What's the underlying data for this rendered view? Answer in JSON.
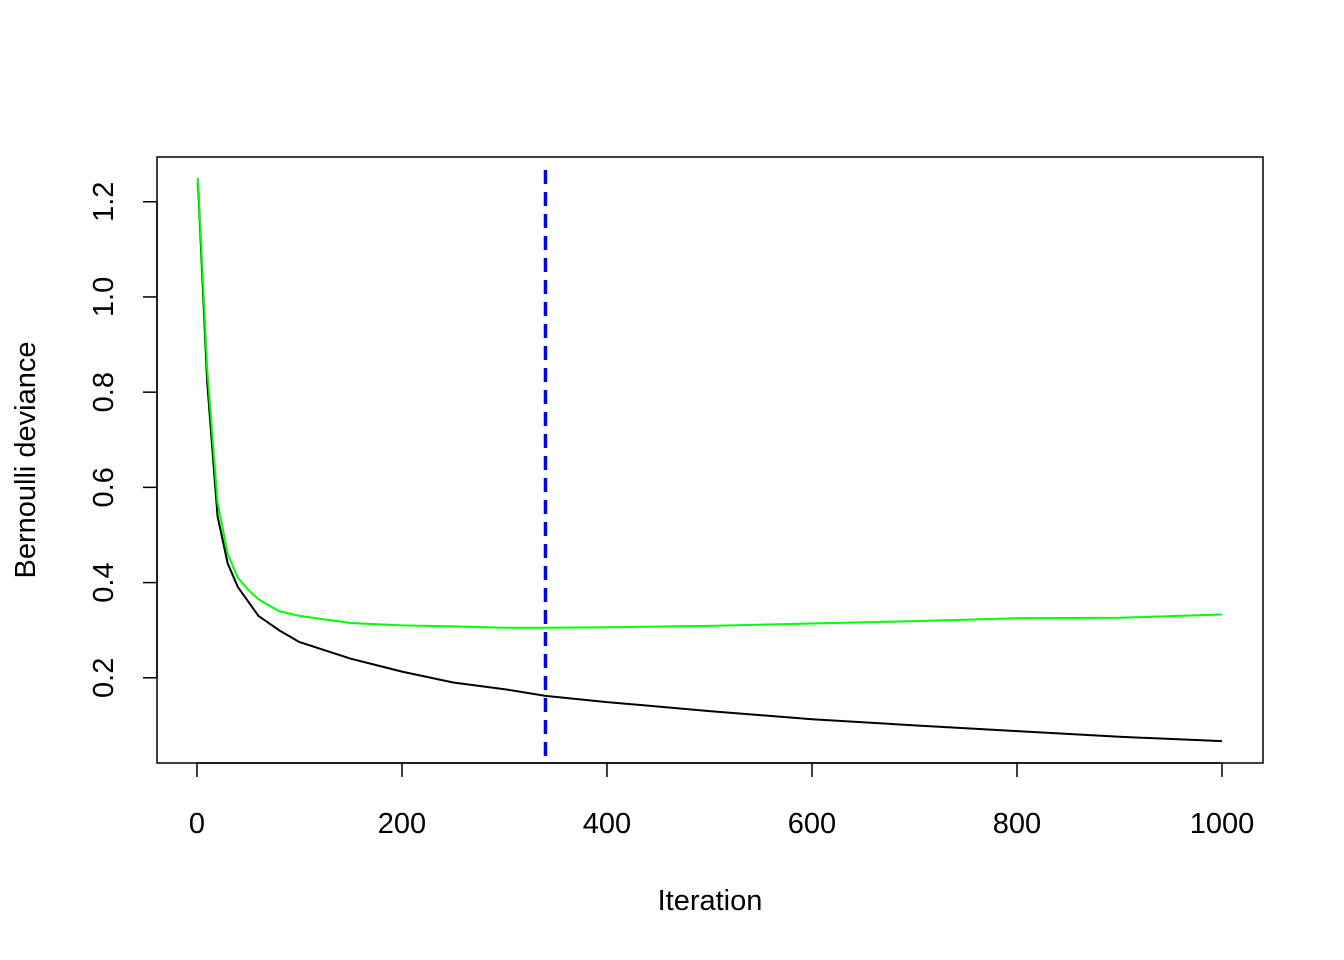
{
  "chart_data": {
    "type": "line",
    "title": "",
    "xlabel": "Iteration",
    "ylabel": "Bernoulli deviance",
    "xlim": [
      -39,
      1040
    ],
    "ylim": [
      0.021,
      1.294
    ],
    "xticks": [
      0,
      200,
      400,
      600,
      800,
      1000
    ],
    "xtick_labels": [
      "0",
      "200",
      "400",
      "600",
      "800",
      "1000"
    ],
    "yticks": [
      0.2,
      0.4,
      0.6,
      0.8,
      1.0,
      1.2
    ],
    "ytick_labels": [
      "0.2",
      "0.4",
      "0.6",
      "0.8",
      "1.0",
      "1.2"
    ],
    "grid": false,
    "x": [
      1,
      10,
      20,
      30,
      40,
      50,
      60,
      80,
      100,
      150,
      200,
      250,
      300,
      340,
      400,
      500,
      600,
      700,
      800,
      900,
      1000
    ],
    "series": [
      {
        "color": "#000000",
        "values": [
          1.24,
          0.82,
          0.54,
          0.44,
          0.39,
          0.36,
          0.33,
          0.3,
          0.275,
          0.24,
          0.213,
          0.19,
          0.176,
          0.162,
          0.149,
          0.13,
          0.113,
          0.1,
          0.088,
          0.076,
          0.067
        ]
      },
      {
        "color": "#00ff00",
        "values": [
          1.25,
          0.85,
          0.57,
          0.46,
          0.41,
          0.385,
          0.365,
          0.34,
          0.33,
          0.315,
          0.31,
          0.308,
          0.305,
          0.305,
          0.306,
          0.309,
          0.314,
          0.319,
          0.325,
          0.326,
          0.333
        ]
      }
    ],
    "vline": {
      "x": 340,
      "color": "#0000ff",
      "style": "dashed"
    }
  }
}
